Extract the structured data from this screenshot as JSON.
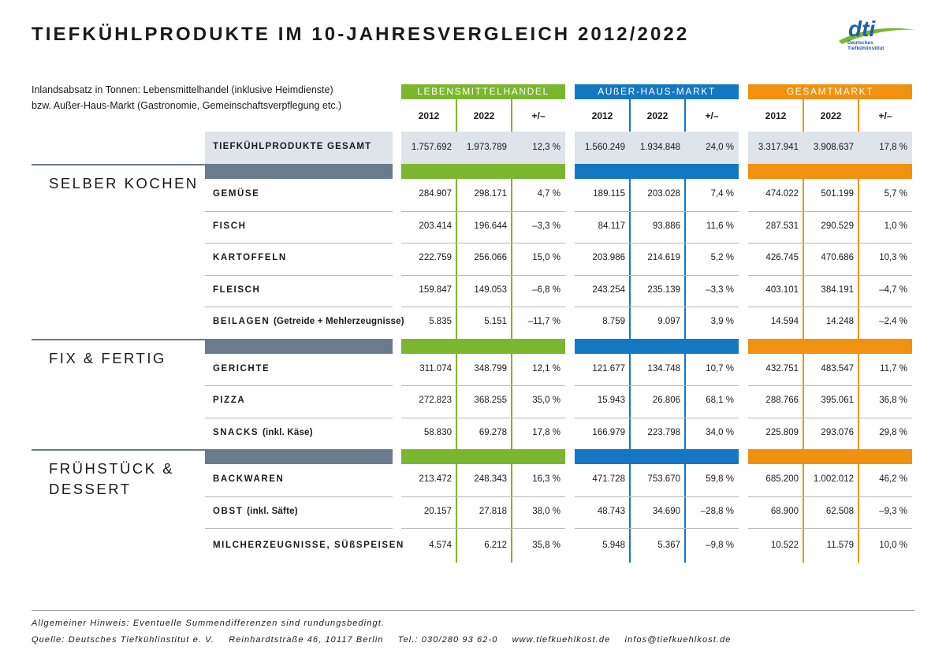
{
  "title": "TIEFKÜHLPRODUKTE IM 10-JAHRESVERGLEICH 2012/2022",
  "logo": {
    "text": "dti",
    "line1": "Deutsches",
    "line2": "Tiefkühlinstitut"
  },
  "intro": {
    "line1": "Inlandsabsatz in Tonnen: Lebensmittelhandel (inklusive Heimdienste)",
    "line2": "bzw. Außer-Haus-Markt (Gastronomie, Gemeinschaftsverpflegung etc.)"
  },
  "colors": {
    "green": "#7ab72e",
    "blue": "#1477c2",
    "orange": "#f0920f",
    "slate": "#6b7a8c",
    "totalbg": "#dfe3ea"
  },
  "groups": [
    {
      "name": "LEBENSMITTELHANDEL",
      "color": "#7ab72e"
    },
    {
      "name": "AUßER-HAUS-MARKT",
      "color": "#1477c2"
    },
    {
      "name": "GESAMTMARKT",
      "color": "#f0920f"
    }
  ],
  "year_headers": [
    "2012",
    "2022",
    "+/–"
  ],
  "total": {
    "label": "TIEFKÜHLPRODUKTE GESAMT",
    "values": [
      "1.757.692",
      "1.973.789",
      "12,3 %",
      "1.560.249",
      "1.934.848",
      "24,0 %",
      "3.317.941",
      "3.908.637",
      "17,8 %"
    ]
  },
  "sections": [
    {
      "title_lines": [
        "SELBER KOCHEN"
      ],
      "rows": [
        {
          "label": "GEMÜSE",
          "sub": "",
          "values": [
            "284.907",
            "298.171",
            "4,7 %",
            "189.115",
            "203.028",
            "7,4 %",
            "474.022",
            "501.199",
            "5,7 %"
          ]
        },
        {
          "label": "FISCH",
          "sub": "",
          "values": [
            "203.414",
            "196.644",
            "–3,3 %",
            "84.117",
            "93.886",
            "11,6 %",
            "287.531",
            "290.529",
            "1,0 %"
          ]
        },
        {
          "label": "KARTOFFELN",
          "sub": "",
          "values": [
            "222.759",
            "256.066",
            "15,0 %",
            "203.986",
            "214.619",
            "5,2 %",
            "426.745",
            "470.686",
            "10,3 %"
          ]
        },
        {
          "label": "FLEISCH",
          "sub": "",
          "values": [
            "159.847",
            "149.053",
            "–6,8 %",
            "243.254",
            "235.139",
            "–3,3 %",
            "403.101",
            "384.191",
            "–4,7 %"
          ]
        },
        {
          "label": "BEILAGEN",
          "sub": "(Getreide + Mehlerzeugnisse)",
          "values": [
            "5.835",
            "5.151",
            "–11,7 %",
            "8.759",
            "9.097",
            "3,9 %",
            "14.594",
            "14.248",
            "–2,4 %"
          ]
        }
      ]
    },
    {
      "title_lines": [
        "FIX & FERTIG"
      ],
      "rows": [
        {
          "label": "GERICHTE",
          "sub": "",
          "values": [
            "311.074",
            "348.799",
            "12,1 %",
            "121.677",
            "134.748",
            "10,7 %",
            "432.751",
            "483.547",
            "11,7 %"
          ]
        },
        {
          "label": "PIZZA",
          "sub": "",
          "values": [
            "272.823",
            "368.255",
            "35,0 %",
            "15.943",
            "26.806",
            "68,1 %",
            "288.766",
            "395.061",
            "36,8 %"
          ]
        },
        {
          "label": "SNACKS",
          "sub": "(inkl. Käse)",
          "values": [
            "58.830",
            "69.278",
            "17,8 %",
            "166.979",
            "223.798",
            "34,0 %",
            "225.809",
            "293.076",
            "29,8 %"
          ]
        }
      ]
    },
    {
      "title_lines": [
        "FRÜHSTÜCK &",
        "DESSERT"
      ],
      "rows": [
        {
          "label": "BACKWAREN",
          "sub": "",
          "values": [
            "213.472",
            "248.343",
            "16,3 %",
            "471.728",
            "753.670",
            "59,8 %",
            "685.200",
            "1.002.012",
            "46,2 %"
          ]
        },
        {
          "label": "OBST",
          "sub": "(inkl. Säfte)",
          "values": [
            "20.157",
            "27.818",
            "38,0 %",
            "48.743",
            "34.690",
            "–28,8 %",
            "68.900",
            "62.508",
            "–9,3 %"
          ]
        },
        {
          "label": "MILCHERZEUGNISSE, SÜßSPEISEN",
          "sub": "",
          "values": [
            "4.574",
            "6.212",
            "35,8 %",
            "5.948",
            "5.367",
            "–9,8 %",
            "10.522",
            "11.579",
            "10,0 %"
          ]
        }
      ]
    }
  ],
  "footer": {
    "note": "Allgemeiner Hinweis: Eventuelle Summendifferenzen sind rundungsbedingt.",
    "source": "Quelle: Deutsches Tiefkühlinstitut e. V.",
    "address": "Reinhardtstraße 46, 10117 Berlin",
    "phone": "Tel.: 030/280 93 62-0",
    "web": "www.tiefkuehlkost.de",
    "email": "infos@tiefkuehlkost.de"
  }
}
